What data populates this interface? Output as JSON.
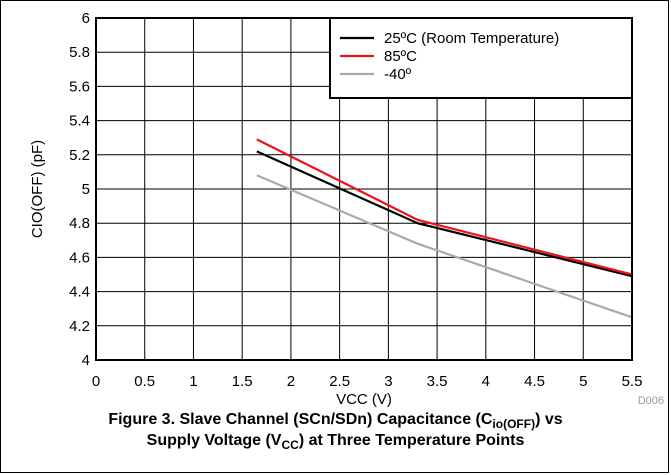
{
  "chart_data": {
    "type": "line",
    "xlabel": "VCC (V)",
    "ylabel": "CIO(OFF) (pF)",
    "xlim": [
      0,
      5.5
    ],
    "ylim": [
      4,
      6
    ],
    "xticks": [
      "0",
      "0.5",
      "1",
      "1.5",
      "2",
      "2.5",
      "3",
      "3.5",
      "4",
      "4.5",
      "5",
      "5.5"
    ],
    "yticks": [
      "4",
      "4.2",
      "4.4",
      "4.6",
      "4.8",
      "5",
      "5.2",
      "5.4",
      "5.6",
      "5.8",
      "6"
    ],
    "grid": true,
    "legend_position": "top-right",
    "series": [
      {
        "name": "25ºC (Room Temperature)",
        "color": "#000000",
        "x": [
          1.65,
          3.3,
          5.5
        ],
        "y": [
          5.22,
          4.8,
          4.49
        ]
      },
      {
        "name": "85ºC",
        "color": "#e8141c",
        "x": [
          1.65,
          3.3,
          5.5
        ],
        "y": [
          5.29,
          4.82,
          4.5
        ]
      },
      {
        "name": "-40º",
        "color": "#aaaaaa",
        "x": [
          1.65,
          3.3,
          5.5
        ],
        "y": [
          5.08,
          4.68,
          4.25
        ]
      }
    ],
    "code": "D006"
  },
  "figure": {
    "caption_line1_a": "Figure 3. Slave Channel (SCn/SDn) Capacitance (C",
    "caption_line1_sub": "io(OFF)",
    "caption_line1_b": ") vs",
    "caption_line2_a": "Supply Voltage (V",
    "caption_line2_sub": "CC",
    "caption_line2_b": ") at Three Temperature Points"
  }
}
